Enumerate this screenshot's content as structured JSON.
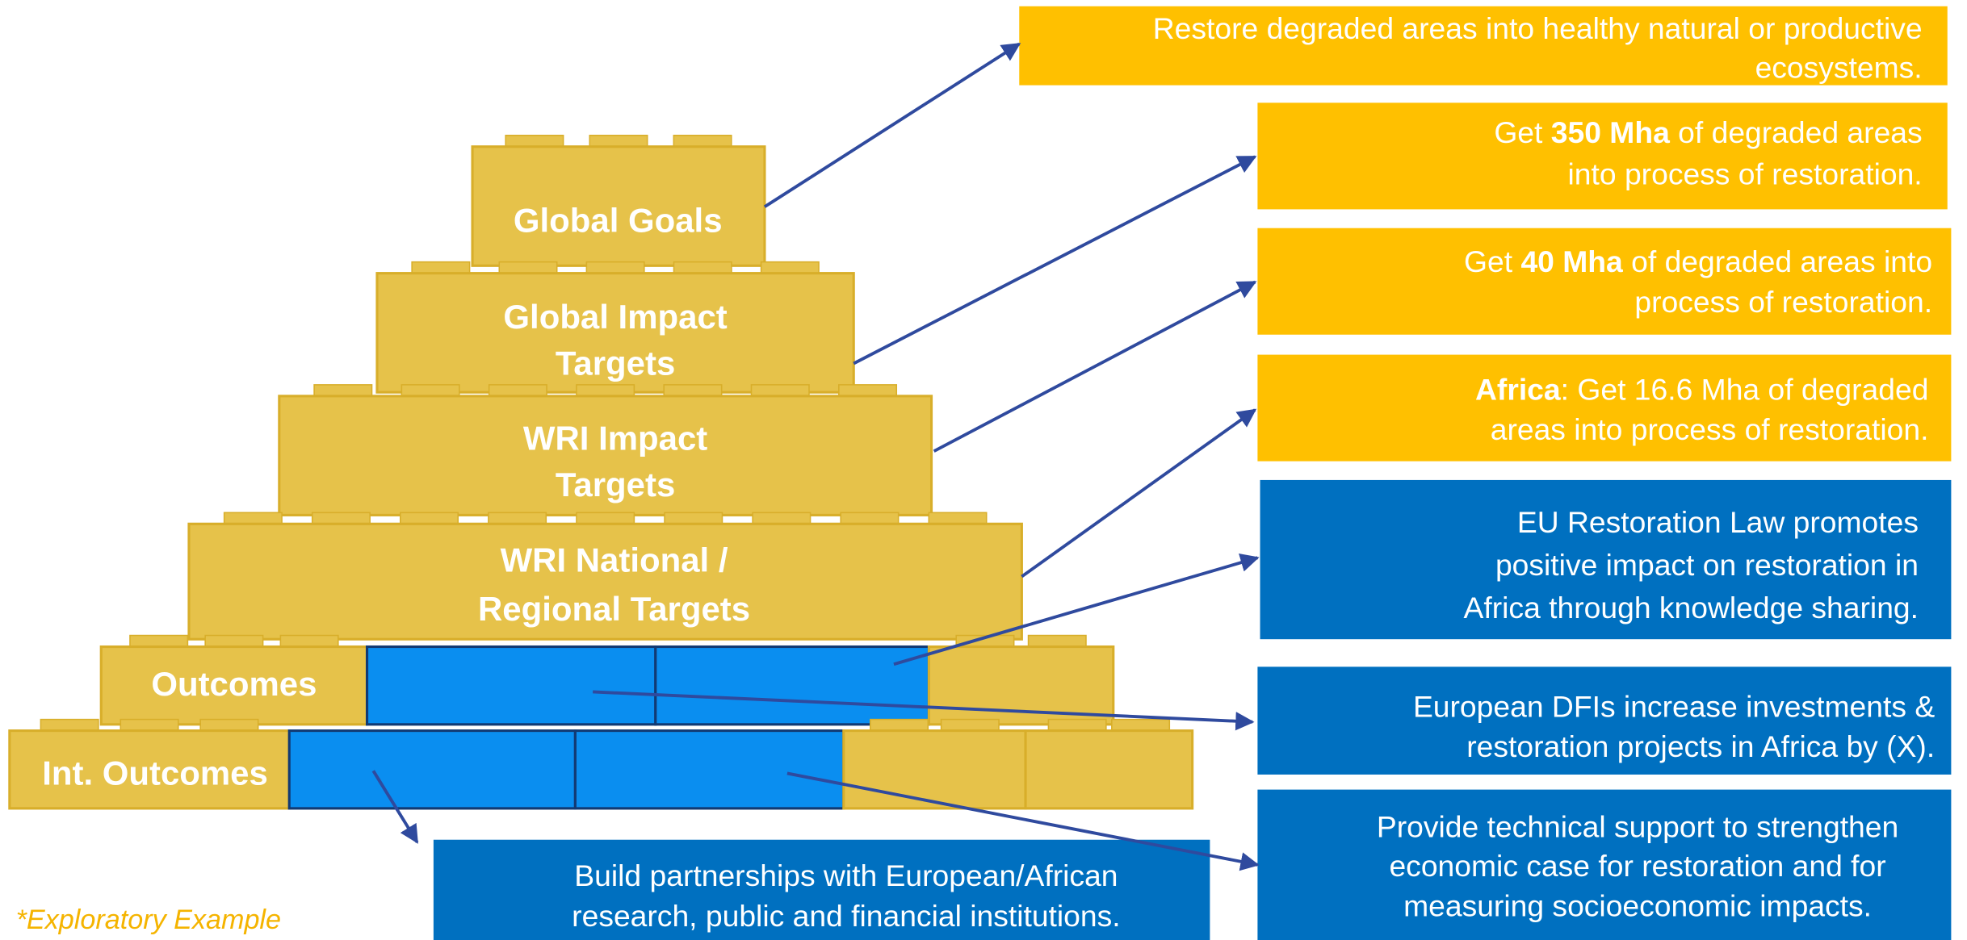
{
  "pyramid": [
    {
      "lines": [
        "Global Goals"
      ]
    },
    {
      "lines": [
        "Global Impact",
        "Targets"
      ]
    },
    {
      "lines": [
        "WRI Impact",
        "Targets"
      ]
    },
    {
      "lines": [
        "WRI National /",
        "Regional Targets"
      ]
    },
    {
      "lines": [
        "Outcomes"
      ]
    },
    {
      "lines": [
        "Int. Outcomes"
      ]
    }
  ],
  "boxes": [
    {
      "lines": [
        [
          {
            "text": "Restore degraded areas into healthy natural or productive",
            "bold": false
          }
        ],
        [
          {
            "text": "ecosystems.",
            "bold": false
          }
        ]
      ]
    },
    {
      "lines": [
        [
          {
            "text": "Get ",
            "bold": false
          },
          {
            "text": "350 Mha",
            "bold": true
          },
          {
            "text": " of degraded areas",
            "bold": false
          }
        ],
        [
          {
            "text": "into process of restoration.",
            "bold": false
          }
        ]
      ]
    },
    {
      "lines": [
        [
          {
            "text": "Get ",
            "bold": false
          },
          {
            "text": "40 Mha",
            "bold": true
          },
          {
            "text": " of degraded areas into",
            "bold": false
          }
        ],
        [
          {
            "text": "process of restoration.",
            "bold": false
          }
        ]
      ]
    },
    {
      "lines": [
        [
          {
            "text": "Africa",
            "bold": true
          },
          {
            "text": ": Get 16.6 Mha of degraded",
            "bold": false
          }
        ],
        [
          {
            "text": "areas into process of restoration.",
            "bold": false
          }
        ]
      ]
    },
    {
      "lines": [
        [
          {
            "text": "EU Restoration Law promotes",
            "bold": false
          }
        ],
        [
          {
            "text": "positive impact on restoration in",
            "bold": false
          }
        ],
        [
          {
            "text": "Africa through knowledge sharing.",
            "bold": false
          }
        ]
      ]
    },
    {
      "lines": [
        [
          {
            "text": "European DFIs increase investments &",
            "bold": false
          }
        ],
        [
          {
            "text": "restoration projects in Africa by (X).",
            "bold": false
          }
        ]
      ]
    },
    {
      "lines": [
        [
          {
            "text": "Provide technical support to strengthen",
            "bold": false
          }
        ],
        [
          {
            "text": "economic case for restoration and for",
            "bold": false
          }
        ],
        [
          {
            "text": "measuring socioeconomic impacts.",
            "bold": false
          }
        ]
      ]
    },
    {
      "lines": [
        [
          {
            "text": "Build partnerships with European/African",
            "bold": false
          }
        ],
        [
          {
            "text": "research, public and financial institutions.",
            "bold": false
          }
        ]
      ]
    }
  ],
  "footnote": "*Exploratory Example"
}
